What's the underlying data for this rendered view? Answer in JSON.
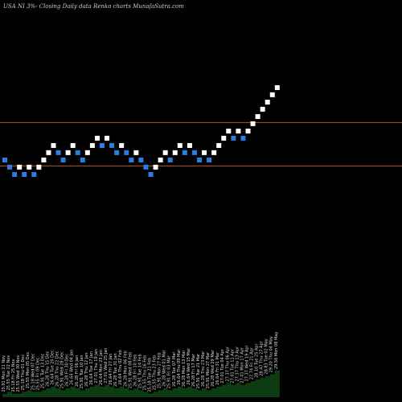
{
  "chart_data": {
    "type": "renko",
    "title": "USA NI 3%-  Closing Daily data  Renko  charts MunafaSutra.com",
    "colors": {
      "background": "#000000",
      "up": "#ffffff",
      "down": "#2b7de0",
      "level_line": "#b5541e",
      "volume": "#0d3b12"
    },
    "levels": [
      27.92,
      25.73
    ],
    "bricks": [
      {
        "dir": "down",
        "value": 25.91
      },
      {
        "dir": "down",
        "value": 25.55
      },
      {
        "dir": "down",
        "value": 25.18
      },
      {
        "dir": "up",
        "value": 25.55
      },
      {
        "dir": "down",
        "value": 25.18
      },
      {
        "dir": "up",
        "value": 25.55
      },
      {
        "dir": "down",
        "value": 25.18
      },
      {
        "dir": "up",
        "value": 25.55
      },
      {
        "dir": "up",
        "value": 25.91
      },
      {
        "dir": "up",
        "value": 26.28
      },
      {
        "dir": "up",
        "value": 26.64
      },
      {
        "dir": "down",
        "value": 26.28
      },
      {
        "dir": "down",
        "value": 25.91
      },
      {
        "dir": "up",
        "value": 26.28
      },
      {
        "dir": "up",
        "value": 26.64
      },
      {
        "dir": "down",
        "value": 26.28
      },
      {
        "dir": "down",
        "value": 25.91
      },
      {
        "dir": "up",
        "value": 26.28
      },
      {
        "dir": "up",
        "value": 26.64
      },
      {
        "dir": "up",
        "value": 27.01
      },
      {
        "dir": "down",
        "value": 26.64
      },
      {
        "dir": "up",
        "value": 27.01
      },
      {
        "dir": "down",
        "value": 26.64
      },
      {
        "dir": "down",
        "value": 26.28
      },
      {
        "dir": "up",
        "value": 26.64
      },
      {
        "dir": "down",
        "value": 26.28
      },
      {
        "dir": "down",
        "value": 25.91
      },
      {
        "dir": "up",
        "value": 26.28
      },
      {
        "dir": "down",
        "value": 25.91
      },
      {
        "dir": "down",
        "value": 25.55
      },
      {
        "dir": "down",
        "value": 25.18
      },
      {
        "dir": "up",
        "value": 25.55
      },
      {
        "dir": "up",
        "value": 25.91
      },
      {
        "dir": "up",
        "value": 26.28
      },
      {
        "dir": "down",
        "value": 25.91
      },
      {
        "dir": "up",
        "value": 26.28
      },
      {
        "dir": "up",
        "value": 26.64
      },
      {
        "dir": "down",
        "value": 26.28
      },
      {
        "dir": "up",
        "value": 26.64
      },
      {
        "dir": "down",
        "value": 26.28
      },
      {
        "dir": "down",
        "value": 25.91
      },
      {
        "dir": "up",
        "value": 26.28
      },
      {
        "dir": "down",
        "value": 25.91
      },
      {
        "dir": "up",
        "value": 26.28
      },
      {
        "dir": "up",
        "value": 26.64
      },
      {
        "dir": "up",
        "value": 27.01
      },
      {
        "dir": "up",
        "value": 27.37
      },
      {
        "dir": "down",
        "value": 27.01
      },
      {
        "dir": "up",
        "value": 27.37
      },
      {
        "dir": "down",
        "value": 27.01
      },
      {
        "dir": "up",
        "value": 27.37
      },
      {
        "dir": "up",
        "value": 27.74
      },
      {
        "dir": "up",
        "value": 28.1
      },
      {
        "dir": "up",
        "value": 28.47
      },
      {
        "dir": "up",
        "value": 28.83
      },
      {
        "dir": "up",
        "value": 29.2
      },
      {
        "dir": "up",
        "value": 29.56
      }
    ],
    "volume": [
      2,
      3,
      2,
      2,
      3,
      4,
      3,
      3,
      4,
      5,
      6,
      5,
      4,
      5,
      6,
      5,
      4,
      5,
      6,
      7,
      6,
      7,
      6,
      5,
      6,
      5,
      4,
      5,
      4,
      3,
      2,
      3,
      4,
      5,
      4,
      5,
      6,
      5,
      6,
      5,
      4,
      5,
      4,
      5,
      6,
      7,
      8,
      7,
      8,
      7,
      8,
      9,
      10,
      11,
      12,
      13,
      15
    ],
    "date_labels": [
      "25.91 Mon 21 Nov",
      "25.55 Tue 22 Nov",
      "25.18 Fri 25 Nov",
      "25.55 Wed 30 Nov",
      "25.18 Thu 01 Dec",
      "25.55 Mon 05 Dec",
      "25.18 Wed 07 Dec",
      "25.55 Fri 09 Dec",
      "25.91 Tue 13 Dec",
      "26.28 Thu 15 Dec",
      "26.64 Tue 20 Dec",
      "26.28 Thu 22 Dec",
      "25.91 Wed 28 Dec",
      "26.28 Fri 30 Dec",
      "26.64 Wed 04 Jan",
      "26.28 Fri 06 Jan",
      "25.91 Tue 10 Jan",
      "26.28 Thu 12 Jan",
      "26.64 Tue 17 Jan",
      "27.01 Thu 19 Jan",
      "26.64 Mon 23 Jan",
      "27.01 Wed 25 Jan",
      "26.64 Fri 27 Jan",
      "26.28 Tue 31 Jan",
      "26.64 Thu 02 Feb",
      "26.28 Mon 06 Feb",
      "25.91 Wed 08 Feb",
      "26.28 Fri 10 Feb",
      "25.91 Tue 14 Feb",
      "25.55 Thu 16 Feb",
      "25.18 Tue 21 Feb",
      "25.55 Thu 23 Feb",
      "25.91 Mon 27 Feb",
      "26.28 Wed 01 Mar",
      "25.91 Fri 03 Mar",
      "26.28 Tue 07 Mar",
      "26.64 Thu 09 Mar",
      "26.28 Mon 13 Mar",
      "26.64 Wed 15 Mar",
      "26.28 Fri 17 Mar",
      "25.91 Tue 21 Mar",
      "26.28 Thu 23 Mar",
      "25.91 Mon 27 Mar",
      "26.28 Wed 29 Mar",
      "26.64 Fri 31 Mar",
      "27.01 Tue 04 Apr",
      "27.37 Thu 06 Apr",
      "27.01 Tue 11 Apr",
      "27.37 Thu 13 Apr",
      "27.01 Mon 17 Apr",
      "27.37 Wed 19 Apr",
      "27.74 Fri 21 Apr",
      "28.10 Tue 25 Apr",
      "28.47 Thu 27 Apr",
      "28.83 Tue 02 May",
      "29.20 Thu 04 May",
      "29.56 Mon 08 May"
    ]
  }
}
